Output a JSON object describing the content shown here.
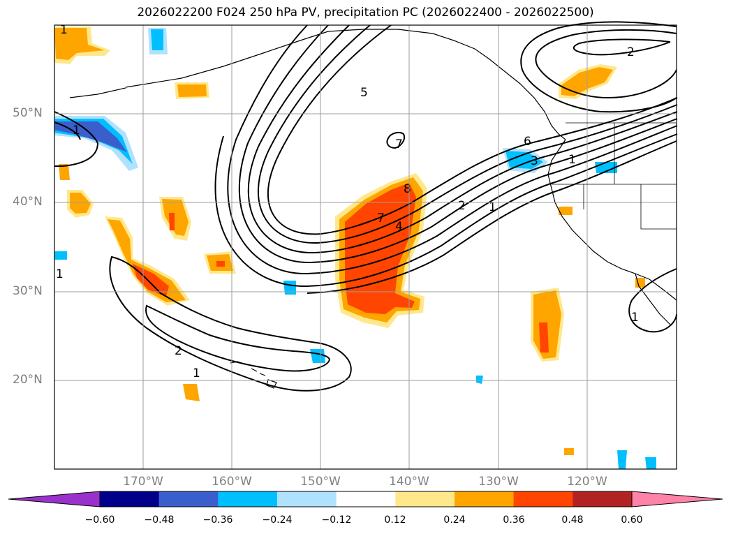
{
  "title": "2026022200 F024 250 hPa PV, precipitation PC (2026022400 - 2026022500)",
  "lat_labels": [
    "50°N",
    "40°N",
    "30°N",
    "20°N"
  ],
  "lon_labels": [
    "170°W",
    "160°W",
    "150°W",
    "140°W",
    "130°W",
    "120°W"
  ],
  "contour_labels": [
    "1",
    "1",
    "2",
    "1",
    "5",
    "7",
    "7",
    "4",
    "6",
    "3",
    "8",
    "2",
    "1",
    "2",
    "1",
    "1",
    "1"
  ],
  "colorbar": {
    "ticks": [
      "−0.60",
      "−0.48",
      "−0.36",
      "−0.24",
      "−0.12",
      "0.12",
      "0.24",
      "0.36",
      "0.48",
      "0.60"
    ],
    "colors": [
      "#9932CC",
      "#00008B",
      "#3A5FCD",
      "#00BFFF",
      "#B0E2FF",
      "#FFFFFF",
      "#FFE88C",
      "#FFA500",
      "#FF4500",
      "#B22222",
      "#FF82A8"
    ]
  },
  "colors": {
    "orange": "#FFA500",
    "red": "#FF4500",
    "yellow": "#FFE88C",
    "blue": "#00BFFF",
    "lightblue": "#B0E2FF",
    "royal": "#3A5FCD"
  }
}
